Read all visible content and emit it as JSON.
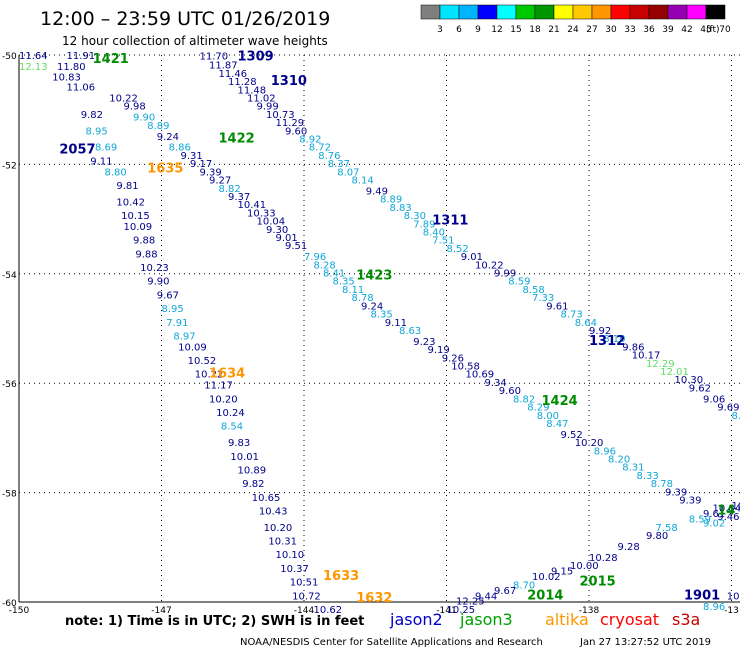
{
  "header": {
    "title": "12:00 – 23:59 UTC 01/26/2019",
    "subtitle": "12 hour collection of altimeter wave heights"
  },
  "legend": {
    "colors": [
      "#7f7f7f",
      "#00e5ff",
      "#00b4ff",
      "#0000ff",
      "#00ffff",
      "#00c800",
      "#009600",
      "#ffff00",
      "#ffc800",
      "#ff9600",
      "#ff0000",
      "#c80000",
      "#960000",
      "#9600b4",
      "#ff00ff",
      "#000000"
    ],
    "labels": [
      "3",
      "6",
      "9",
      "12",
      "15",
      "18",
      "21",
      "24",
      "27",
      "30",
      "33",
      "36",
      "39",
      "42",
      "45",
      "70"
    ],
    "unit": "(ft)"
  },
  "axes": {
    "lat_labels": [
      "-50",
      "-52",
      "-54",
      "-56",
      "-58",
      "-60"
    ],
    "lon_labels": [
      "-150",
      "-147",
      "-144",
      "-141",
      "-138",
      "-13"
    ]
  },
  "footer": {
    "note": "note: 1) Time is in UTC; 2) SWH is in feet",
    "satellites": [
      {
        "name": "jason2",
        "color": "#0000c8"
      },
      {
        "name": "jason3",
        "color": "#00a000"
      },
      {
        "name": "altika",
        "color": "#ff9600"
      },
      {
        "name": "cryosat",
        "color": "#ff0000"
      },
      {
        "name": "s3a",
        "color": "#c80000"
      }
    ],
    "credit": "NOAA/NESDIS Center for Satellite Applications and Research",
    "timestamp": "Jan 27 13:27:52 UTC 2019"
  },
  "colors": {
    "navy": "#00008b",
    "sky": "#0fa7d8",
    "green": "#008c00",
    "orange": "#ff9600",
    "lightgreen": "#64dc64",
    "red": "#ff0000"
  },
  "pass_labels": [
    {
      "text": "1421",
      "color": "green",
      "lon": -148.45,
      "lat": -50.15
    },
    {
      "text": "1309",
      "color": "navy",
      "lon": -145.4,
      "lat": -50.1
    },
    {
      "text": "1310",
      "color": "navy",
      "lon": -144.7,
      "lat": -50.55
    },
    {
      "text": "2057",
      "color": "navy",
      "lon": -149.15,
      "lat": -51.8
    },
    {
      "text": "1422",
      "color": "green",
      "lon": -145.8,
      "lat": -51.6
    },
    {
      "text": "1635",
      "color": "orange",
      "lon": -147.3,
      "lat": -52.15
    },
    {
      "text": "1311",
      "color": "navy",
      "lon": -141.3,
      "lat": -53.1
    },
    {
      "text": "1423",
      "color": "green",
      "lon": -142.9,
      "lat": -54.1
    },
    {
      "text": "1312",
      "color": "navy",
      "lon": -138.0,
      "lat": -55.3
    },
    {
      "text": "1634",
      "color": "orange",
      "lon": -146.0,
      "lat": -55.9
    },
    {
      "text": "1424",
      "color": "green",
      "lon": -139.0,
      "lat": -56.4
    },
    {
      "text": "1633",
      "color": "orange",
      "lon": -143.6,
      "lat": -59.6
    },
    {
      "text": "1632",
      "color": "orange",
      "lon": -142.9,
      "lat": -60.0
    },
    {
      "text": "2015",
      "color": "green",
      "lon": -138.2,
      "lat": -59.7
    },
    {
      "text": "2014",
      "color": "green",
      "lon": -139.3,
      "lat": -59.95
    },
    {
      "text": "1901",
      "color": "navy",
      "lon": -136.0,
      "lat": -59.95
    },
    {
      "text": "14",
      "color": "green",
      "lon": -135.3,
      "lat": -58.4
    }
  ],
  "observations": [
    {
      "v": "11.64",
      "c": "navy",
      "lon": -150.0,
      "lat": -50.07
    },
    {
      "v": "11.91",
      "c": "navy",
      "lon": -149.0,
      "lat": -50.07
    },
    {
      "v": "12.13",
      "c": "lightgreen",
      "lon": -150.0,
      "lat": -50.27
    },
    {
      "v": "11.80",
      "c": "navy",
      "lon": -149.2,
      "lat": -50.27
    },
    {
      "v": "10.83",
      "c": "navy",
      "lon": -149.3,
      "lat": -50.47
    },
    {
      "v": "11.06",
      "c": "navy",
      "lon": -149.0,
      "lat": -50.65
    },
    {
      "v": "10.22",
      "c": "navy",
      "lon": -148.1,
      "lat": -50.85
    },
    {
      "v": "9.98",
      "c": "navy",
      "lon": -147.8,
      "lat": -51.0
    },
    {
      "v": "9.82",
      "c": "navy",
      "lon": -148.7,
      "lat": -51.15
    },
    {
      "v": "9.90",
      "c": "sky",
      "lon": -147.6,
      "lat": -51.2
    },
    {
      "v": "8.95",
      "c": "sky",
      "lon": -148.6,
      "lat": -51.45
    },
    {
      "v": "8.89",
      "c": "sky",
      "lon": -147.3,
      "lat": -51.35
    },
    {
      "v": "9.24",
      "c": "navy",
      "lon": -147.1,
      "lat": -51.55
    },
    {
      "v": "8.69",
      "c": "sky",
      "lon": -148.4,
      "lat": -51.75
    },
    {
      "v": "8.86",
      "c": "sky",
      "lon": -146.85,
      "lat": -51.75
    },
    {
      "v": "9.31",
      "c": "navy",
      "lon": -146.6,
      "lat": -51.9
    },
    {
      "v": "9.11",
      "c": "navy",
      "lon": -148.5,
      "lat": -52.0
    },
    {
      "v": "9.17",
      "c": "navy",
      "lon": -146.4,
      "lat": -52.05
    },
    {
      "v": "8.80",
      "c": "sky",
      "lon": -148.2,
      "lat": -52.2
    },
    {
      "v": "9.39",
      "c": "navy",
      "lon": -146.2,
      "lat": -52.2
    },
    {
      "v": "9.27",
      "c": "navy",
      "lon": -146.0,
      "lat": -52.35
    },
    {
      "v": "9.81",
      "c": "navy",
      "lon": -147.95,
      "lat": -52.45
    },
    {
      "v": "8.82",
      "c": "sky",
      "lon": -145.8,
      "lat": -52.5
    },
    {
      "v": "10.42",
      "c": "navy",
      "lon": -147.95,
      "lat": -52.75
    },
    {
      "v": "9.37",
      "c": "navy",
      "lon": -145.6,
      "lat": -52.65
    },
    {
      "v": "10.41",
      "c": "navy",
      "lon": -145.4,
      "lat": -52.8
    },
    {
      "v": "10.15",
      "c": "navy",
      "lon": -147.85,
      "lat": -53.0
    },
    {
      "v": "10.33",
      "c": "navy",
      "lon": -145.2,
      "lat": -52.95
    },
    {
      "v": "10.04",
      "c": "navy",
      "lon": -145.0,
      "lat": -53.1
    },
    {
      "v": "10.09",
      "c": "navy",
      "lon": -147.8,
      "lat": -53.2
    },
    {
      "v": "9.30",
      "c": "navy",
      "lon": -144.8,
      "lat": -53.25
    },
    {
      "v": "9.88",
      "c": "navy",
      "lon": -147.6,
      "lat": -53.45
    },
    {
      "v": "9.01",
      "c": "navy",
      "lon": -144.6,
      "lat": -53.4
    },
    {
      "v": "9.88",
      "c": "navy",
      "lon": -147.55,
      "lat": -53.7
    },
    {
      "v": "9.51",
      "c": "navy",
      "lon": -144.4,
      "lat": -53.55
    },
    {
      "v": "7.96",
      "c": "sky",
      "lon": -144.0,
      "lat": -53.75
    },
    {
      "v": "10.23",
      "c": "navy",
      "lon": -147.45,
      "lat": -53.95
    },
    {
      "v": "8.28",
      "c": "sky",
      "lon": -143.8,
      "lat": -53.9
    },
    {
      "v": "8.41",
      "c": "sky",
      "lon": -143.6,
      "lat": -54.05
    },
    {
      "v": "9.90",
      "c": "navy",
      "lon": -147.3,
      "lat": -54.2
    },
    {
      "v": "8.35",
      "c": "sky",
      "lon": -143.4,
      "lat": -54.2
    },
    {
      "v": "8.11",
      "c": "sky",
      "lon": -143.2,
      "lat": -54.35
    },
    {
      "v": "9.67",
      "c": "navy",
      "lon": -147.1,
      "lat": -54.45
    },
    {
      "v": "8.78",
      "c": "sky",
      "lon": -143.0,
      "lat": -54.5
    },
    {
      "v": "9.24",
      "c": "navy",
      "lon": -142.8,
      "lat": -54.65
    },
    {
      "v": "8.95",
      "c": "sky",
      "lon": -147.0,
      "lat": -54.7
    },
    {
      "v": "8.35",
      "c": "sky",
      "lon": -142.6,
      "lat": -54.8
    },
    {
      "v": "7.91",
      "c": "sky",
      "lon": -146.9,
      "lat": -54.95
    },
    {
      "v": "9.11",
      "c": "navy",
      "lon": -142.3,
      "lat": -54.95
    },
    {
      "v": "8.97",
      "c": "sky",
      "lon": -146.75,
      "lat": -55.2
    },
    {
      "v": "8.63",
      "c": "sky",
      "lon": -142.0,
      "lat": -55.1
    },
    {
      "v": "10.09",
      "c": "navy",
      "lon": -146.65,
      "lat": -55.4
    },
    {
      "v": "9.23",
      "c": "navy",
      "lon": -141.7,
      "lat": -55.3
    },
    {
      "v": "9.19",
      "c": "navy",
      "lon": -141.4,
      "lat": -55.45
    },
    {
      "v": "10.52",
      "c": "navy",
      "lon": -146.45,
      "lat": -55.65
    },
    {
      "v": "9.26",
      "c": "navy",
      "lon": -141.1,
      "lat": -55.6
    },
    {
      "v": "10.58",
      "c": "navy",
      "lon": -140.9,
      "lat": -55.75
    },
    {
      "v": "10.22",
      "c": "navy",
      "lon": -146.3,
      "lat": -55.9
    },
    {
      "v": "10.69",
      "c": "navy",
      "lon": -140.6,
      "lat": -55.9
    },
    {
      "v": "11.17",
      "c": "navy",
      "lon": -146.1,
      "lat": -56.1
    },
    {
      "v": "9.34",
      "c": "navy",
      "lon": -140.2,
      "lat": -56.05
    },
    {
      "v": "9.60",
      "c": "navy",
      "lon": -139.9,
      "lat": -56.2
    },
    {
      "v": "10.20",
      "c": "navy",
      "lon": -146.0,
      "lat": -56.35
    },
    {
      "v": "8.82",
      "c": "sky",
      "lon": -139.6,
      "lat": -56.35
    },
    {
      "v": "8.29",
      "c": "sky",
      "lon": -139.3,
      "lat": -56.5
    },
    {
      "v": "10.24",
      "c": "navy",
      "lon": -145.85,
      "lat": -56.6
    },
    {
      "v": "8.00",
      "c": "sky",
      "lon": -139.1,
      "lat": -56.65
    },
    {
      "v": "8.54",
      "c": "sky",
      "lon": -145.75,
      "lat": -56.85
    },
    {
      "v": "8.47",
      "c": "sky",
      "lon": -138.9,
      "lat": -56.8
    },
    {
      "v": "9.52",
      "c": "navy",
      "lon": -138.6,
      "lat": -57.0
    },
    {
      "v": "9.83",
      "c": "navy",
      "lon": -145.6,
      "lat": -57.15
    },
    {
      "v": "10.20",
      "c": "navy",
      "lon": -138.3,
      "lat": -57.15
    },
    {
      "v": "10.01",
      "c": "navy",
      "lon": -145.55,
      "lat": -57.4
    },
    {
      "v": "8.96",
      "c": "sky",
      "lon": -137.9,
      "lat": -57.3
    },
    {
      "v": "8.20",
      "c": "sky",
      "lon": -137.6,
      "lat": -57.45
    },
    {
      "v": "10.89",
      "c": "navy",
      "lon": -145.4,
      "lat": -57.65
    },
    {
      "v": "8.31",
      "c": "sky",
      "lon": -137.3,
      "lat": -57.6
    },
    {
      "v": "9.82",
      "c": "navy",
      "lon": -145.3,
      "lat": -57.9
    },
    {
      "v": "8.33",
      "c": "sky",
      "lon": -137.0,
      "lat": -57.75
    },
    {
      "v": "8.78",
      "c": "sky",
      "lon": -136.7,
      "lat": -57.9
    },
    {
      "v": "10.65",
      "c": "navy",
      "lon": -145.1,
      "lat": -58.15
    },
    {
      "v": "9.39",
      "c": "navy",
      "lon": -136.4,
      "lat": -58.05
    },
    {
      "v": "9.39",
      "c": "navy",
      "lon": -136.1,
      "lat": -58.2
    },
    {
      "v": "10.43",
      "c": "navy",
      "lon": -144.95,
      "lat": -58.4
    },
    {
      "v": "10.20",
      "c": "navy",
      "lon": -144.85,
      "lat": -58.7
    },
    {
      "v": "10.31",
      "c": "navy",
      "lon": -144.75,
      "lat": -58.95
    },
    {
      "v": "10.10",
      "c": "navy",
      "lon": -144.6,
      "lat": -59.2
    },
    {
      "v": "10.37",
      "c": "navy",
      "lon": -144.5,
      "lat": -59.45
    },
    {
      "v": "10.51",
      "c": "navy",
      "lon": -144.3,
      "lat": -59.7
    },
    {
      "v": "10.72",
      "c": "navy",
      "lon": -144.25,
      "lat": -59.95
    },
    {
      "v": "10.62",
      "c": "navy",
      "lon": -143.8,
      "lat": -60.2
    },
    {
      "v": "11.70",
      "c": "navy",
      "lon": -146.2,
      "lat": -50.08
    },
    {
      "v": "11.87",
      "c": "navy",
      "lon": -146.0,
      "lat": -50.25
    },
    {
      "v": "11.46",
      "c": "navy",
      "lon": -145.8,
      "lat": -50.4
    },
    {
      "v": "11.28",
      "c": "navy",
      "lon": -145.6,
      "lat": -50.55
    },
    {
      "v": "11.48",
      "c": "navy",
      "lon": -145.4,
      "lat": -50.7
    },
    {
      "v": "11.02",
      "c": "navy",
      "lon": -145.2,
      "lat": -50.85
    },
    {
      "v": "9.99",
      "c": "navy",
      "lon": -145.0,
      "lat": -51.0
    },
    {
      "v": "10.73",
      "c": "navy",
      "lon": -144.8,
      "lat": -51.15
    },
    {
      "v": "11.29",
      "c": "navy",
      "lon": -144.6,
      "lat": -51.3
    },
    {
      "v": "9.60",
      "c": "navy",
      "lon": -144.4,
      "lat": -51.45
    },
    {
      "v": "8.92",
      "c": "sky",
      "lon": -144.1,
      "lat": -51.6
    },
    {
      "v": "8.72",
      "c": "sky",
      "lon": -143.9,
      "lat": -51.75
    },
    {
      "v": "8.76",
      "c": "sky",
      "lon": -143.7,
      "lat": -51.9
    },
    {
      "v": "8.37",
      "c": "sky",
      "lon": -143.5,
      "lat": -52.05
    },
    {
      "v": "8.07",
      "c": "sky",
      "lon": -143.3,
      "lat": -52.2
    },
    {
      "v": "8.14",
      "c": "sky",
      "lon": -143.0,
      "lat": -52.35
    },
    {
      "v": "9.49",
      "c": "navy",
      "lon": -142.7,
      "lat": -52.55
    },
    {
      "v": "8.89",
      "c": "sky",
      "lon": -142.4,
      "lat": -52.7
    },
    {
      "v": "8.83",
      "c": "sky",
      "lon": -142.2,
      "lat": -52.85
    },
    {
      "v": "8.30",
      "c": "sky",
      "lon": -141.9,
      "lat": -53.0
    },
    {
      "v": "7.89",
      "c": "sky",
      "lon": -141.7,
      "lat": -53.15
    },
    {
      "v": "8.40",
      "c": "sky",
      "lon": -141.5,
      "lat": -53.3
    },
    {
      "v": "7.51",
      "c": "sky",
      "lon": -141.3,
      "lat": -53.45
    },
    {
      "v": "8.52",
      "c": "sky",
      "lon": -141.0,
      "lat": -53.6
    },
    {
      "v": "9.01",
      "c": "navy",
      "lon": -140.7,
      "lat": -53.75
    },
    {
      "v": "10.22",
      "c": "navy",
      "lon": -140.4,
      "lat": -53.9
    },
    {
      "v": "9.99",
      "c": "navy",
      "lon": -140.0,
      "lat": -54.05
    },
    {
      "v": "8.59",
      "c": "sky",
      "lon": -139.7,
      "lat": -54.2
    },
    {
      "v": "8.58",
      "c": "sky",
      "lon": -139.4,
      "lat": -54.35
    },
    {
      "v": "7.33",
      "c": "sky",
      "lon": -139.2,
      "lat": -54.5
    },
    {
      "v": "9.61",
      "c": "navy",
      "lon": -138.9,
      "lat": -54.65
    },
    {
      "v": "8.73",
      "c": "sky",
      "lon": -138.6,
      "lat": -54.8
    },
    {
      "v": "8.64",
      "c": "sky",
      "lon": -138.3,
      "lat": -54.95
    },
    {
      "v": "9.92",
      "c": "navy",
      "lon": -138.0,
      "lat": -55.1
    },
    {
      "v": "8.10",
      "c": "sky",
      "lon": -137.7,
      "lat": -55.25
    },
    {
      "v": "9.86",
      "c": "navy",
      "lon": -137.3,
      "lat": -55.4
    },
    {
      "v": "10.17",
      "c": "navy",
      "lon": -137.1,
      "lat": -55.55
    },
    {
      "v": "12.29",
      "c": "lightgreen",
      "lon": -136.8,
      "lat": -55.7
    },
    {
      "v": "12.01",
      "c": "lightgreen",
      "lon": -136.5,
      "lat": -55.85
    },
    {
      "v": "10.30",
      "c": "navy",
      "lon": -136.2,
      "lat": -56.0
    },
    {
      "v": "9.62",
      "c": "navy",
      "lon": -135.9,
      "lat": -56.15
    },
    {
      "v": "9.06",
      "c": "navy",
      "lon": -135.6,
      "lat": -56.35
    },
    {
      "v": "9.69",
      "c": "navy",
      "lon": -135.3,
      "lat": -56.5
    },
    {
      "v": "8.70",
      "c": "sky",
      "lon": -135.0,
      "lat": -56.65
    },
    {
      "v": "9.07",
      "c": "navy",
      "lon": -134.7,
      "lat": -56.85
    },
    {
      "v": "7.94",
      "c": "sky",
      "lon": -134.4,
      "lat": -57.0
    },
    {
      "v": "9.3",
      "c": "navy",
      "lon": -133.9,
      "lat": -57.2
    },
    {
      "v": "10.96",
      "c": "navy",
      "lon": -133.9,
      "lat": -58.05
    },
    {
      "v": "7",
      "c": "sky",
      "lon": -133.6,
      "lat": -57.9
    },
    {
      "v": "10.30",
      "c": "navy",
      "lon": -135.0,
      "lat": -58.3
    },
    {
      "v": "10.84",
      "c": "navy",
      "lon": -135.4,
      "lat": -58.35
    },
    {
      "v": "9.46",
      "c": "navy",
      "lon": -135.3,
      "lat": -58.5
    },
    {
      "v": "9.61",
      "c": "navy",
      "lon": -135.6,
      "lat": -58.45
    },
    {
      "v": "8.59",
      "c": "sky",
      "lon": -135.9,
      "lat": -58.55
    },
    {
      "v": "9.02",
      "c": "sky",
      "lon": -135.6,
      "lat": -58.62
    },
    {
      "v": "7.58",
      "c": "sky",
      "lon": -136.6,
      "lat": -58.7
    },
    {
      "v": "8.17",
      "c": "sky",
      "lon": -134.7,
      "lat": -58.7
    },
    {
      "v": "8.2",
      "c": "sky",
      "lon": -133.95,
      "lat": -58.85
    },
    {
      "v": "9.80",
      "c": "navy",
      "lon": -136.8,
      "lat": -58.85
    },
    {
      "v": "9.28",
      "c": "navy",
      "lon": -137.4,
      "lat": -59.05
    },
    {
      "v": "10.28",
      "c": "navy",
      "lon": -138.0,
      "lat": -59.25
    },
    {
      "v": "10.00",
      "c": "navy",
      "lon": -138.4,
      "lat": -59.4
    },
    {
      "v": "9.15",
      "c": "navy",
      "lon": -138.8,
      "lat": -59.5
    },
    {
      "v": "10.02",
      "c": "navy",
      "lon": -139.2,
      "lat": -59.6
    },
    {
      "v": "8.70",
      "c": "sky",
      "lon": -139.6,
      "lat": -59.75
    },
    {
      "v": "9.67",
      "c": "navy",
      "lon": -140.0,
      "lat": -59.85
    },
    {
      "v": "9.44",
      "c": "navy",
      "lon": -140.4,
      "lat": -59.95
    },
    {
      "v": "12.25",
      "c": "navy",
      "lon": -140.8,
      "lat": -60.05
    },
    {
      "v": "10.25",
      "c": "navy",
      "lon": -141.0,
      "lat": -60.2
    },
    {
      "v": "9.78",
      "c": "navy",
      "lon": -133.9,
      "lat": -59.75
    },
    {
      "v": "10.40",
      "c": "navy",
      "lon": -134.6,
      "lat": -59.85
    },
    {
      "v": "10.07",
      "c": "navy",
      "lon": -135.1,
      "lat": -59.95
    },
    {
      "v": "8.96",
      "c": "sky",
      "lon": -135.6,
      "lat": -60.15
    }
  ]
}
